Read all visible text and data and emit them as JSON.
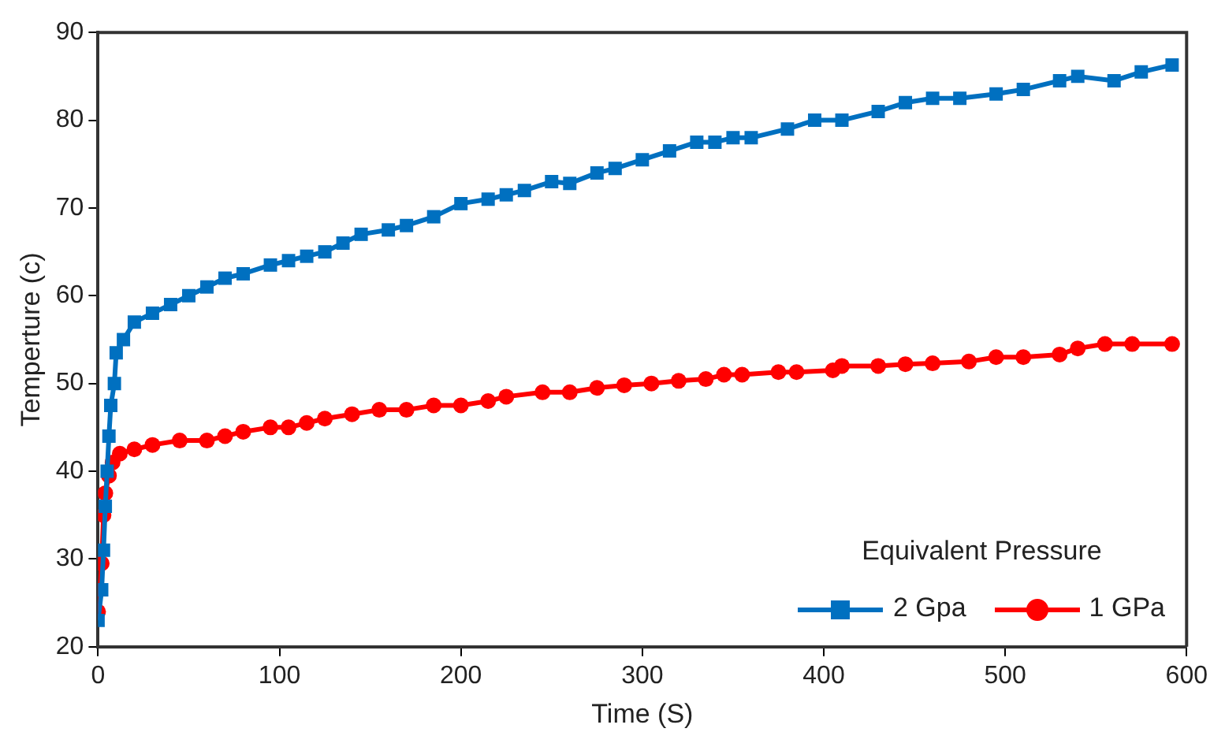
{
  "chart_data": {
    "type": "line",
    "xlabel": "Time (S)",
    "ylabel": "Temperture (c)",
    "legend_title": "Equivalent Pressure",
    "legend": "bottom right",
    "grid": false,
    "xlim": [
      0,
      600
    ],
    "xticks": [
      0,
      100,
      200,
      300,
      400,
      500,
      600
    ],
    "ylim": [
      20,
      90
    ],
    "yticks": [
      20,
      30,
      40,
      50,
      60,
      70,
      80,
      90
    ],
    "series": [
      {
        "name": "2 Gpa",
        "color": "#0070c0",
        "marker": "square",
        "x": [
          0,
          2,
          3,
          4,
          5,
          6,
          7,
          9,
          10,
          14,
          20,
          30,
          40,
          50,
          60,
          70,
          80,
          95,
          105,
          115,
          125,
          135,
          145,
          160,
          170,
          185,
          200,
          215,
          225,
          235,
          250,
          260,
          275,
          285,
          300,
          315,
          330,
          340,
          350,
          360,
          380,
          395,
          410,
          430,
          445,
          460,
          475,
          495,
          510,
          530,
          540,
          560,
          575,
          592
        ],
        "values": [
          23,
          26.5,
          31,
          36,
          40,
          44,
          47.5,
          50,
          53.5,
          55,
          57,
          58,
          59,
          60,
          61,
          62,
          62.5,
          63.5,
          64,
          64.5,
          65,
          66,
          67,
          67.5,
          68,
          69,
          70.5,
          71,
          71.5,
          72,
          73,
          72.8,
          74,
          74.5,
          75.5,
          76.5,
          77.5,
          77.5,
          78,
          78,
          79,
          80,
          80,
          81,
          82,
          82.5,
          82.5,
          83,
          83.5,
          84.5,
          85,
          84.5,
          85.5,
          86.3
        ]
      },
      {
        "name": "1 GPa",
        "color": "#ff0000",
        "marker": "circle",
        "x": [
          0,
          2,
          3,
          4,
          6,
          8,
          12,
          20,
          30,
          45,
          60,
          70,
          80,
          95,
          105,
          115,
          125,
          140,
          155,
          170,
          185,
          200,
          215,
          225,
          245,
          260,
          275,
          290,
          305,
          320,
          335,
          345,
          355,
          375,
          385,
          405,
          410,
          430,
          445,
          460,
          480,
          495,
          510,
          530,
          540,
          555,
          570,
          592
        ],
        "values": [
          24,
          29.5,
          35,
          37.5,
          39.5,
          41,
          42,
          42.5,
          43,
          43.5,
          43.5,
          44,
          44.5,
          45,
          45,
          45.5,
          46,
          46.5,
          47,
          47,
          47.5,
          47.5,
          48,
          48.5,
          49,
          49,
          49.5,
          49.8,
          50,
          50.3,
          50.5,
          51,
          51,
          51.3,
          51.3,
          51.5,
          52,
          52,
          52.2,
          52.3,
          52.5,
          53,
          53,
          53.3,
          54,
          54.5,
          54.5,
          54.5
        ]
      }
    ]
  }
}
